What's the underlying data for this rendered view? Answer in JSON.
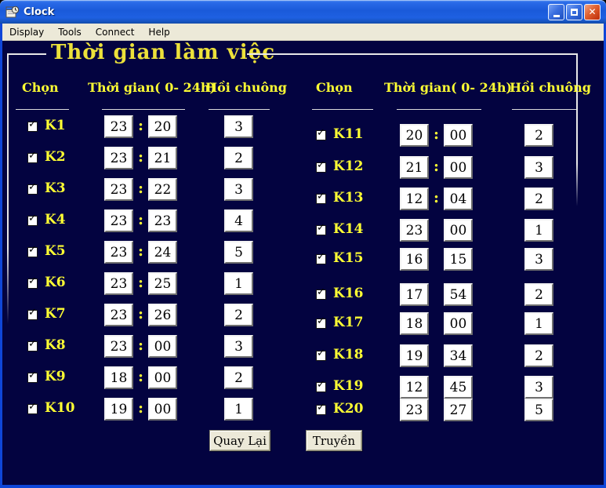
{
  "window": {
    "title": "Clock",
    "controls": {
      "minimize": "_",
      "maximize": "□",
      "close": "✕"
    }
  },
  "menu": {
    "items": [
      "Display",
      "Tools",
      "Connect",
      "Help"
    ]
  },
  "form_title": "Thời gian làm việc",
  "check_glyph": "✓",
  "time_separator": ":",
  "groups": [
    {
      "headers": {
        "select": "Chọn",
        "time": "Thời gian( 0- 24h)",
        "bell": "Hồi chuông"
      },
      "rows": [
        {
          "label": "K1",
          "checked": true,
          "hour": "23",
          "minute": "20",
          "colon": true,
          "bell": "3"
        },
        {
          "label": "K2",
          "checked": true,
          "hour": "23",
          "minute": "21",
          "colon": true,
          "bell": "2"
        },
        {
          "label": "K3",
          "checked": true,
          "hour": "23",
          "minute": "22",
          "colon": true,
          "bell": "3"
        },
        {
          "label": "K4",
          "checked": true,
          "hour": "23",
          "minute": "23",
          "colon": true,
          "bell": "4"
        },
        {
          "label": "K5",
          "checked": true,
          "hour": "23",
          "minute": "24",
          "colon": true,
          "bell": "5"
        },
        {
          "label": "K6",
          "checked": true,
          "hour": "23",
          "minute": "25",
          "colon": true,
          "bell": "1"
        },
        {
          "label": "K7",
          "checked": true,
          "hour": "23",
          "minute": "26",
          "colon": true,
          "bell": "2"
        },
        {
          "label": "K8",
          "checked": true,
          "hour": "23",
          "minute": "00",
          "colon": true,
          "bell": "3"
        },
        {
          "label": "K9",
          "checked": true,
          "hour": "18",
          "minute": "00",
          "colon": true,
          "bell": "2"
        },
        {
          "label": "K10",
          "checked": true,
          "hour": "19",
          "minute": "00",
          "colon": true,
          "bell": "1"
        }
      ]
    },
    {
      "headers": {
        "select": "Chọn",
        "time": "Thời gian( 0- 24h)",
        "bell": "Hồi chuông"
      },
      "rows": [
        {
          "label": "K11",
          "checked": true,
          "hour": "20",
          "minute": "00",
          "colon": true,
          "bell": "2"
        },
        {
          "label": "K12",
          "checked": true,
          "hour": "21",
          "minute": "00",
          "colon": true,
          "bell": "3"
        },
        {
          "label": "K13",
          "checked": true,
          "hour": "12",
          "minute": "04",
          "colon": true,
          "bell": "2"
        },
        {
          "label": "K14",
          "checked": true,
          "hour": "23",
          "minute": "00",
          "colon": false,
          "bell": "1"
        },
        {
          "label": "K15",
          "checked": true,
          "hour": "16",
          "minute": "15",
          "colon": false,
          "bell": "3"
        },
        {
          "label": "K16",
          "checked": true,
          "hour": "17",
          "minute": "54",
          "colon": false,
          "bell": "2"
        },
        {
          "label": "K17",
          "checked": true,
          "hour": "18",
          "minute": "00",
          "colon": false,
          "bell": "1"
        },
        {
          "label": "K18",
          "checked": true,
          "hour": "19",
          "minute": "34",
          "colon": false,
          "bell": "2"
        },
        {
          "label": "K19",
          "checked": true,
          "hour": "12",
          "minute": "45",
          "colon": false,
          "bell": "3"
        },
        {
          "label": "K20",
          "checked": true,
          "hour": "23",
          "minute": "27",
          "colon": false,
          "bell": "5"
        }
      ]
    }
  ],
  "buttons": {
    "back": "Quay Lại",
    "send": "Truyền"
  },
  "colors": {
    "background": "#030340",
    "label_yellow": "#ffff33",
    "title_yellow": "#ece13a",
    "titlebar_blue": "#1a5ada",
    "border_blue": "#0f46d8"
  }
}
